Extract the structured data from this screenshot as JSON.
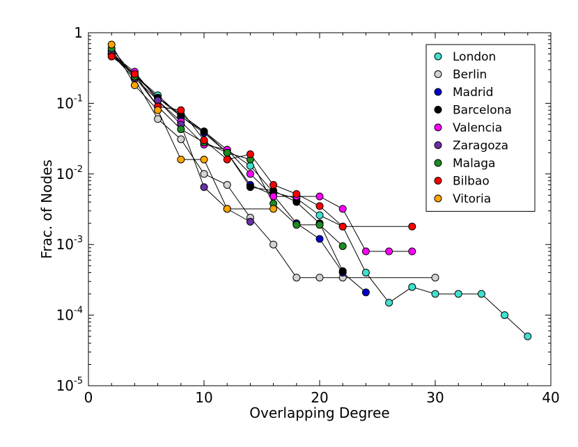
{
  "chart_data": {
    "type": "scatter",
    "xlabel": "Overlapping Degree",
    "ylabel": "Frac. of Nodes",
    "xlim": [
      0,
      40
    ],
    "ylim": [
      1e-05,
      1
    ],
    "yscale": "log",
    "x_ticks": [
      {
        "value": 0,
        "label": "0"
      },
      {
        "value": 10,
        "label": "10"
      },
      {
        "value": 20,
        "label": "20"
      },
      {
        "value": 30,
        "label": "30"
      },
      {
        "value": 40,
        "label": "40"
      }
    ],
    "y_ticks": [
      {
        "value": 1,
        "base": "1",
        "exp": ""
      },
      {
        "value": 0.1,
        "base": "10",
        "exp": "-1"
      },
      {
        "value": 0.01,
        "base": "10",
        "exp": "-2"
      },
      {
        "value": 0.001,
        "base": "10",
        "exp": "-3"
      },
      {
        "value": 0.0001,
        "base": "10",
        "exp": "-4"
      },
      {
        "value": 1e-05,
        "base": "10",
        "exp": "-5"
      }
    ],
    "legend_position": "top-right",
    "grid": false,
    "series": [
      {
        "name": "London",
        "color": "#40e0d0",
        "x": [
          2,
          4,
          6,
          8,
          10,
          12,
          14,
          16,
          18,
          20,
          22,
          24,
          26,
          28,
          30,
          32,
          34,
          36,
          38
        ],
        "y": [
          0.5,
          0.25,
          0.13,
          0.065,
          0.04,
          0.022,
          0.013,
          0.0055,
          0.0045,
          0.0026,
          0.0018,
          0.0004,
          0.00015,
          0.00025,
          0.0002,
          0.0002,
          0.0002,
          0.0001,
          5e-05
        ]
      },
      {
        "name": "Berlin",
        "color": "#d3d3d3",
        "x": [
          2,
          4,
          6,
          8,
          10,
          12,
          14,
          16,
          18,
          20,
          22,
          30
        ],
        "y": [
          0.5,
          0.22,
          0.06,
          0.031,
          0.01,
          0.007,
          0.0024,
          0.001,
          0.00034,
          0.00034,
          0.00034,
          0.00034
        ]
      },
      {
        "name": "Madrid",
        "color": "#0000cd",
        "x": [
          2,
          4,
          6,
          8,
          10,
          12,
          14,
          16,
          18,
          20,
          22,
          24
        ],
        "y": [
          0.5,
          0.25,
          0.12,
          0.065,
          0.038,
          0.02,
          0.007,
          0.005,
          0.002,
          0.0012,
          0.0004,
          0.00021
        ]
      },
      {
        "name": "Barcelona",
        "color": "#000000",
        "x": [
          2,
          4,
          6,
          8,
          10,
          12,
          14,
          16,
          18,
          20,
          22
        ],
        "y": [
          0.5,
          0.26,
          0.12,
          0.07,
          0.04,
          0.02,
          0.0065,
          0.0058,
          0.004,
          0.002,
          0.00042
        ]
      },
      {
        "name": "Valencia",
        "color": "#ff00ff",
        "x": [
          2,
          4,
          6,
          8,
          10,
          12,
          14,
          16,
          18,
          20,
          22,
          24,
          26,
          28
        ],
        "y": [
          0.5,
          0.28,
          0.11,
          0.055,
          0.026,
          0.022,
          0.01,
          0.0048,
          0.0048,
          0.0048,
          0.0032,
          0.0008,
          0.0008,
          0.0008
        ]
      },
      {
        "name": "Zaragoza",
        "color": "#6a2fa3",
        "x": [
          2,
          4,
          6,
          8,
          10,
          12,
          14
        ],
        "y": [
          0.55,
          0.23,
          0.11,
          0.05,
          0.0065,
          0.0032,
          0.0021
        ]
      },
      {
        "name": "Malaga",
        "color": "#1e8b22",
        "x": [
          2,
          4,
          6,
          8,
          10,
          12,
          14,
          16,
          18,
          20,
          22
        ],
        "y": [
          0.6,
          0.24,
          0.09,
          0.043,
          0.028,
          0.02,
          0.016,
          0.0038,
          0.0019,
          0.0019,
          0.00095
        ]
      },
      {
        "name": "Bilbao",
        "color": "#ff0000",
        "x": [
          2,
          4,
          6,
          8,
          10,
          12,
          14,
          16,
          18,
          20,
          22,
          28
        ],
        "y": [
          0.46,
          0.26,
          0.09,
          0.08,
          0.03,
          0.016,
          0.019,
          0.007,
          0.0052,
          0.0035,
          0.0018,
          0.0018
        ]
      },
      {
        "name": "Vitoria",
        "color": "#ffa500",
        "x": [
          2,
          4,
          6,
          8,
          10,
          12,
          16
        ],
        "y": [
          0.68,
          0.18,
          0.08,
          0.016,
          0.016,
          0.0032,
          0.0032
        ]
      }
    ]
  }
}
